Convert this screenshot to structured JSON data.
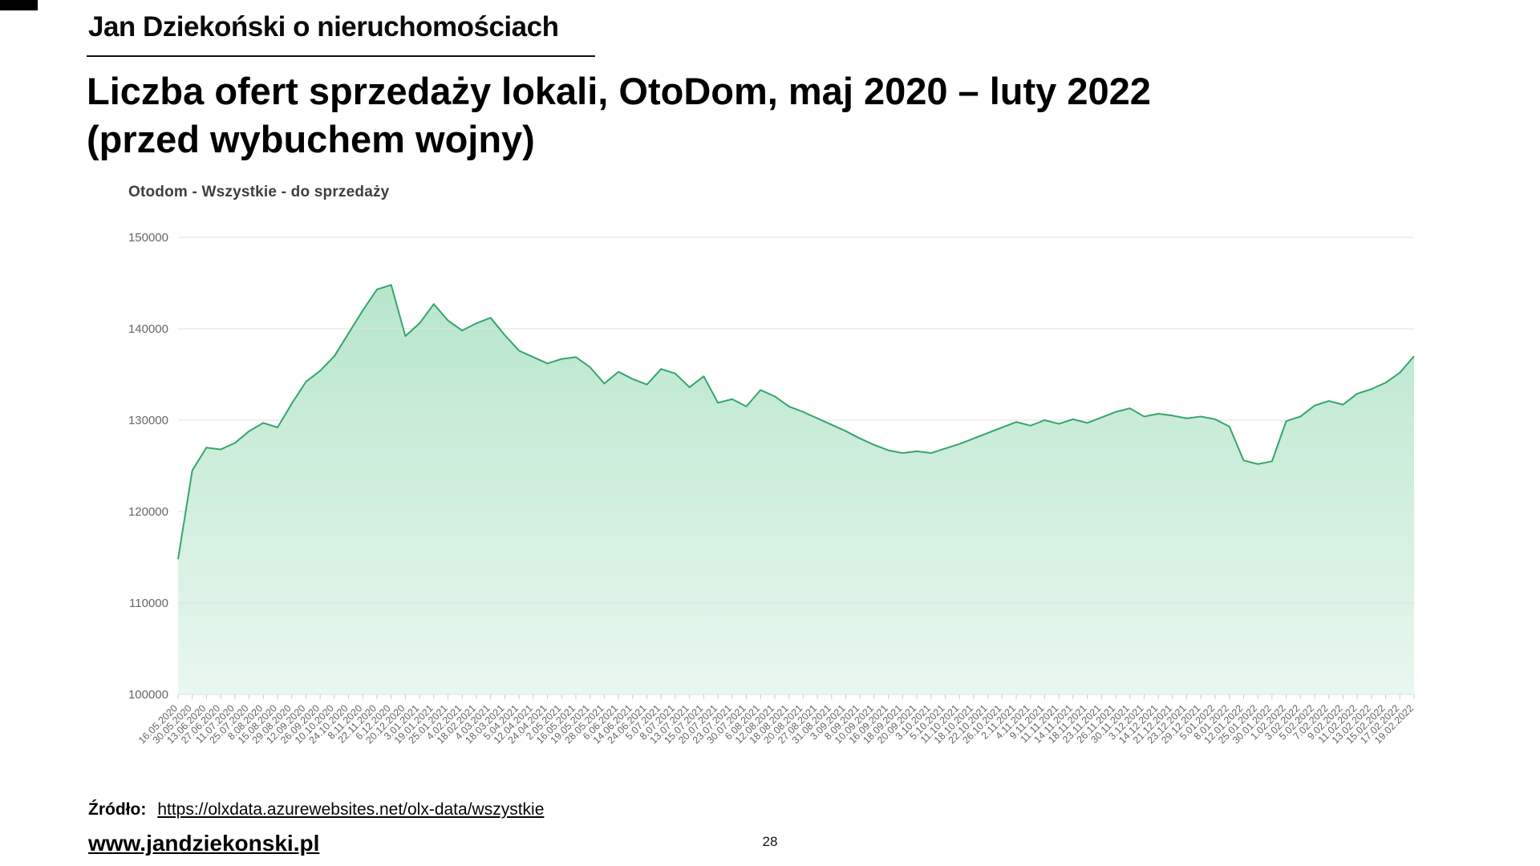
{
  "page": {
    "header": "Jan Dziekoński o nieruchomościach",
    "title_line1": "Liczba ofert sprzedaży lokali, OtoDom, maj 2020 – luty 2022",
    "title_line2": "(przed wybuchem wojny)",
    "source_label": "Źródło:",
    "source_url": "https://olxdata.azurewebsites.net/olx-data/wszystkie",
    "site": "www.jandziekonski.pl",
    "page_number": "28"
  },
  "chart_data": {
    "type": "area",
    "title": "Otodom - Wszystkie - do sprzedaży",
    "ylabel": "",
    "xlabel": "",
    "ylim": [
      100000,
      150000
    ],
    "yticks": [
      100000,
      110000,
      120000,
      130000,
      140000,
      150000
    ],
    "grid": true,
    "legend_position": "none",
    "line_color": "#34a56d",
    "fill_top": "#b7e6cc",
    "fill_bottom": "#e9f7ef",
    "grid_color": "#e2e2e2",
    "axis_text_color": "#666666",
    "x": [
      "16.05.2020",
      "30.05.2020",
      "13.06.2020",
      "27.06.2020",
      "11.07.2020",
      "25.07.2020",
      "8.08.2020",
      "15.08.2020",
      "29.08.2020",
      "12.09.2020",
      "26.09.2020",
      "10.10.2020",
      "24.10.2020",
      "8.11.2020",
      "22.11.2020",
      "6.12.2020",
      "20.12.2020",
      "3.01.2021",
      "19.01.2021",
      "25.01.2021",
      "4.02.2021",
      "18.02.2021",
      "4.03.2021",
      "18.03.2021",
      "5.04.2021",
      "12.04.2021",
      "24.04.2021",
      "2.05.2021",
      "16.05.2021",
      "19.05.2021",
      "28.05.2021",
      "6.06.2021",
      "14.06.2021",
      "24.06.2021",
      "5.07.2021",
      "8.07.2021",
      "13.07.2021",
      "15.07.2021",
      "20.07.2021",
      "23.07.2021",
      "30.07.2021",
      "6.08.2021",
      "12.08.2021",
      "18.08.2021",
      "20.08.2021",
      "27.08.2021",
      "31.08.2021",
      "3.09.2021",
      "8.09.2021",
      "10.09.2021",
      "16.09.2021",
      "18.09.2021",
      "20.09.2021",
      "3.10.2021",
      "5.10.2021",
      "11.10.2021",
      "18.10.2021",
      "22.10.2021",
      "26.10.2021",
      "2.11.2021",
      "4.11.2021",
      "9.11.2021",
      "11.11.2021",
      "14.11.2021",
      "18.11.2021",
      "23.11.2021",
      "26.11.2021",
      "30.11.2021",
      "3.12.2021",
      "14.12.2021",
      "21.12.2021",
      "23.12.2021",
      "29.12.2021",
      "5.01.2022",
      "8.01.2022",
      "12.01.2022",
      "25.01.2022",
      "30.01.2022",
      "1.02.2022",
      "3.02.2022",
      "5.02.2022",
      "7.02.2022",
      "9.02.2022",
      "11.02.2022",
      "13.02.2022",
      "15.02.2022",
      "17.02.2022",
      "19.02.2022"
    ],
    "values": [
      114800,
      124500,
      127000,
      126800,
      127500,
      128800,
      129700,
      129200,
      131800,
      134200,
      135400,
      137000,
      139500,
      142000,
      144300,
      144800,
      139200,
      140600,
      142700,
      140900,
      139800,
      140600,
      141200,
      139300,
      137600,
      136900,
      136200,
      136700,
      136900,
      135800,
      134000,
      135300,
      134500,
      133900,
      135600,
      135100,
      133600,
      134800,
      131900,
      132300,
      131500,
      133300,
      132600,
      131500,
      130900,
      130200,
      129500,
      128800,
      128000,
      127300,
      126700,
      126400,
      126600,
      126400,
      126900,
      127400,
      128000,
      128600,
      129200,
      129800,
      129400,
      130000,
      129600,
      130100,
      129700,
      130300,
      130900,
      131300,
      130400,
      130700,
      130500,
      130200,
      130400,
      130100,
      129300,
      125600,
      125200,
      125500,
      129900,
      130400,
      131600,
      132100,
      131700,
      132900,
      133400,
      134100,
      135200,
      137000
    ]
  }
}
